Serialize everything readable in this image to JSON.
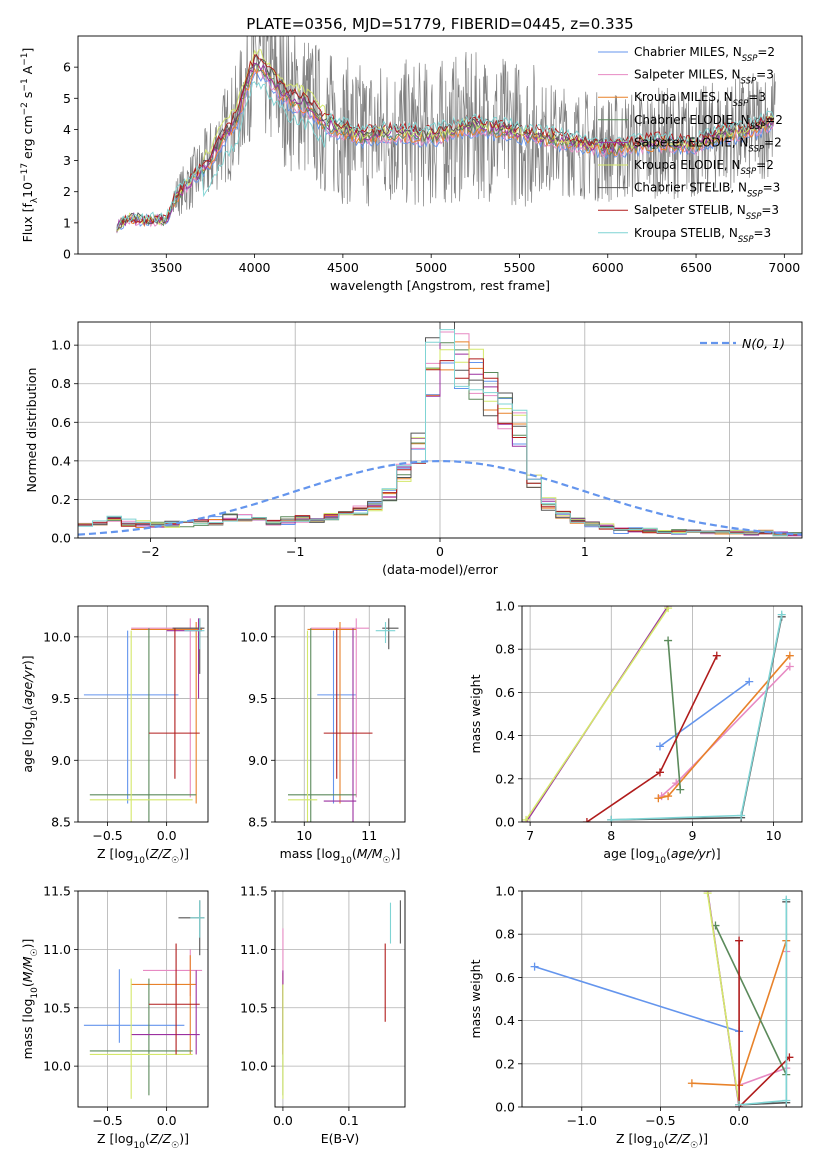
{
  "figure": {
    "title": "PLATE=0356, MJD=51779, FIBERID=0445, z=0.335"
  },
  "series_styles": [
    {
      "name": "Chabrier MILES, N_SSP=2",
      "label_main": "Chabrier MILES, N",
      "label_sub": "SSP",
      "label_end": "=2",
      "color": "#6495ed"
    },
    {
      "name": "Salpeter MILES, N_SSP=3",
      "label_main": "Salpeter MILES, N",
      "label_sub": "SSP",
      "label_end": "=3",
      "color": "#e78ac3"
    },
    {
      "name": "Kroupa MILES, N_SSP=3",
      "label_main": "Kroupa MILES, N",
      "label_sub": "SSP",
      "label_end": "=3",
      "color": "#e8822a"
    },
    {
      "name": "Chabrier ELODIE, N_SSP=2",
      "label_main": "Chabrier ELODIE, N",
      "label_sub": "SSP",
      "label_end": "=2",
      "color": "#5b8a5b"
    },
    {
      "name": "Salpeter ELODIE, N_SSP=2",
      "label_main": "Salpeter ELODIE, N",
      "label_sub": "SSP",
      "label_end": "=2",
      "color": "#9b30a0"
    },
    {
      "name": "Kroupa ELODIE, N_SSP=2",
      "label_main": "Kroupa ELODIE, N",
      "label_sub": "SSP",
      "label_end": "=2",
      "color": "#d4e86a"
    },
    {
      "name": "Chabrier STELIB, N_SSP=3",
      "label_main": "Chabrier STELIB, N",
      "label_sub": "SSP",
      "label_end": "=3",
      "color": "#555555"
    },
    {
      "name": "Salpeter STELIB, N_SSP=3",
      "label_main": "Salpeter STELIB, N",
      "label_sub": "SSP",
      "label_end": "=3",
      "color": "#b01c1c"
    },
    {
      "name": "Kroupa STELIB, N_SSP=3",
      "label_main": "Kroupa STELIB, N",
      "label_sub": "SSP",
      "label_end": "=3",
      "color": "#7fd4d4"
    }
  ],
  "chart_data": [
    {
      "id": "spectrum",
      "type": "line",
      "xlabel": "wavelength [Angstrom, rest frame]",
      "ylabel": "Flux [f_λ 10^-17 erg cm^-2 s^-1 A^-1]",
      "xlim": [
        3000,
        7100
      ],
      "ylim": [
        0,
        7
      ],
      "xticks": [
        3500,
        4000,
        4500,
        5000,
        5500,
        6000,
        6500,
        7000
      ],
      "yticks": [
        0,
        1,
        2,
        3,
        4,
        5,
        6
      ],
      "data_color": "#808080",
      "model_anchors": {
        "x": [
          3220,
          3300,
          3400,
          3500,
          3550,
          3650,
          3750,
          3800,
          3900,
          3950,
          4000,
          4050,
          4100,
          4200,
          4300,
          4400,
          4500,
          4600,
          4800,
          5000,
          5200,
          5300,
          5500,
          5700,
          6000,
          6300,
          6500,
          6600,
          6800,
          6950
        ],
        "y": [
          0.9,
          1.15,
          1.1,
          1.1,
          1.8,
          2.4,
          3.0,
          3.6,
          4.3,
          5.4,
          6.1,
          6.0,
          5.6,
          5.0,
          4.8,
          4.2,
          4.0,
          3.8,
          3.9,
          3.8,
          4.1,
          4.1,
          3.9,
          3.7,
          3.4,
          3.6,
          3.5,
          3.8,
          4.0,
          4.3
        ]
      },
      "legend": "upper right",
      "grid": false
    },
    {
      "id": "residuals",
      "type": "line",
      "xlabel": "(data-model)/error",
      "ylabel": "Normed distribution",
      "xlim": [
        -2.5,
        2.5
      ],
      "ylim": [
        0,
        1.12
      ],
      "xticks": [
        -2,
        -1,
        0,
        1,
        2
      ],
      "yticks": [
        0.0,
        0.2,
        0.4,
        0.6,
        0.8,
        1.0
      ],
      "gaussian_label": "N(0, 1)",
      "gaussian_color": "#6495ed",
      "hist_edges": [
        -2.5,
        -2.4,
        -2.3,
        -2.2,
        -2.1,
        -2.0,
        -1.9,
        -1.8,
        -1.7,
        -1.6,
        -1.5,
        -1.4,
        -1.3,
        -1.2,
        -1.1,
        -1.0,
        -0.9,
        -0.8,
        -0.7,
        -0.6,
        -0.5,
        -0.4,
        -0.3,
        -0.2,
        -0.1,
        0.0,
        0.1,
        0.2,
        0.3,
        0.4,
        0.5,
        0.6,
        0.7,
        0.8,
        0.9,
        1.0,
        1.1,
        1.2,
        1.3,
        1.4,
        1.5,
        1.6,
        1.7,
        1.8,
        1.9,
        2.0,
        2.1,
        2.2,
        2.3,
        2.4,
        2.5
      ],
      "hist_base": [
        0.08,
        0.08,
        0.09,
        0.08,
        0.07,
        0.07,
        0.07,
        0.08,
        0.08,
        0.09,
        0.1,
        0.1,
        0.1,
        0.08,
        0.09,
        0.1,
        0.1,
        0.11,
        0.12,
        0.14,
        0.16,
        0.22,
        0.33,
        0.46,
        0.88,
        1.02,
        0.93,
        0.83,
        0.77,
        0.68,
        0.57,
        0.3,
        0.18,
        0.12,
        0.09,
        0.07,
        0.06,
        0.04,
        0.04,
        0.04,
        0.03,
        0.03,
        0.03,
        0.03,
        0.03,
        0.03,
        0.03,
        0.03,
        0.02,
        0.02
      ],
      "legend": "upper right",
      "grid": true
    },
    {
      "id": "age-vs-Z",
      "type": "scatter",
      "xlabel": "Z [log10(Z/Z☉)]",
      "ylabel": "age [log10(age/yr)]",
      "xlim": [
        -0.75,
        0.35
      ],
      "ylim": [
        8.5,
        10.25
      ],
      "xticks": [
        -0.5,
        0.0
      ],
      "yticks": [
        8.5,
        9.0,
        9.5,
        10.0
      ],
      "points": [
        {
          "s": 0,
          "x": -0.33,
          "y": 9.53,
          "xlo": -0.7,
          "xhi": 0.1,
          "ylo": 8.65,
          "yhi": 10.05
        },
        {
          "s": 1,
          "x": 0.2,
          "y": 10.07,
          "xlo": -0.3,
          "xhi": 0.3,
          "ylo": 8.7,
          "yhi": 10.15
        },
        {
          "s": 2,
          "x": 0.25,
          "y": 10.06,
          "xlo": -0.3,
          "xhi": 0.3,
          "ylo": 8.65,
          "yhi": 10.12
        },
        {
          "s": 3,
          "x": -0.15,
          "y": 8.72,
          "xlo": -0.65,
          "xhi": 0.25,
          "ylo": 8.5,
          "yhi": 10.07
        },
        {
          "s": 4,
          "x": 0.27,
          "y": 10.05,
          "xlo": 0.0,
          "xhi": 0.3,
          "ylo": 9.5,
          "yhi": 10.15
        },
        {
          "s": 5,
          "x": -0.3,
          "y": 8.68,
          "xlo": -0.65,
          "xhi": 0.22,
          "ylo": 8.5,
          "yhi": 10.05
        },
        {
          "s": 6,
          "x": 0.28,
          "y": 10.07,
          "xlo": 0.05,
          "xhi": 0.32,
          "ylo": 9.7,
          "yhi": 10.15
        },
        {
          "s": 7,
          "x": 0.07,
          "y": 9.22,
          "xlo": -0.15,
          "xhi": 0.28,
          "ylo": 8.85,
          "yhi": 10.07
        },
        {
          "s": 8,
          "x": 0.28,
          "y": 10.05,
          "xlo": 0.15,
          "xhi": 0.32,
          "ylo": 9.9,
          "yhi": 10.15
        }
      ],
      "grid": true
    },
    {
      "id": "age-vs-mass",
      "type": "scatter",
      "xlabel": "mass [log10(M/M☉)]",
      "ylabel": "",
      "xlim": [
        9.55,
        11.55
      ],
      "ylim": [
        8.5,
        10.25
      ],
      "xticks": [
        10,
        11
      ],
      "yticks": [
        8.5,
        9.0,
        9.5,
        10.0
      ],
      "points": [
        {
          "s": 0,
          "x": 10.45,
          "y": 9.53,
          "xlo": 10.2,
          "xhi": 10.8,
          "ylo": 8.65,
          "yhi": 10.05
        },
        {
          "s": 1,
          "x": 10.8,
          "y": 10.07,
          "xlo": 10.1,
          "xhi": 11.0,
          "ylo": 8.7,
          "yhi": 10.15
        },
        {
          "s": 2,
          "x": 10.55,
          "y": 10.06,
          "xlo": 10.05,
          "xhi": 10.8,
          "ylo": 8.65,
          "yhi": 10.12
        },
        {
          "s": 3,
          "x": 10.1,
          "y": 8.72,
          "xlo": 9.75,
          "xhi": 10.8,
          "ylo": 8.5,
          "yhi": 10.07
        },
        {
          "s": 4,
          "x": 10.75,
          "y": 8.67,
          "xlo": 10.3,
          "xhi": 10.8,
          "ylo": 8.5,
          "yhi": 10.07
        },
        {
          "s": 5,
          "x": 10.05,
          "y": 8.68,
          "xlo": 9.75,
          "xhi": 10.2,
          "ylo": 8.5,
          "yhi": 10.05
        },
        {
          "s": 6,
          "x": 11.3,
          "y": 10.07,
          "xlo": 11.2,
          "xhi": 11.45,
          "ylo": 9.9,
          "yhi": 10.15
        },
        {
          "s": 7,
          "x": 10.5,
          "y": 9.22,
          "xlo": 10.3,
          "xhi": 11.05,
          "ylo": 8.85,
          "yhi": 10.07
        },
        {
          "s": 8,
          "x": 11.25,
          "y": 10.05,
          "xlo": 11.1,
          "xhi": 11.4,
          "ylo": 9.95,
          "yhi": 10.12
        }
      ],
      "grid": true
    },
    {
      "id": "weight-vs-age",
      "type": "line",
      "xlabel": "age [log10(age/yr)]",
      "ylabel": "mass weight",
      "xlim": [
        6.9,
        10.35
      ],
      "ylim": [
        0,
        1
      ],
      "xticks": [
        7,
        8,
        9,
        10
      ],
      "yticks": [
        0.0,
        0.2,
        0.4,
        0.6,
        0.8,
        1.0
      ],
      "lines": [
        {
          "s": 0,
          "x": [
            8.6,
            9.7
          ],
          "y": [
            0.35,
            0.65
          ]
        },
        {
          "s": 1,
          "x": [
            8.62,
            8.8,
            10.2
          ],
          "y": [
            0.12,
            0.18,
            0.72
          ]
        },
        {
          "s": 2,
          "x": [
            8.58,
            8.7,
            10.2
          ],
          "y": [
            0.11,
            0.12,
            0.77
          ]
        },
        {
          "s": 3,
          "x": [
            8.7,
            8.85
          ],
          "y": [
            0.84,
            0.15
          ]
        },
        {
          "s": 4,
          "x": [
            6.95,
            8.7
          ],
          "y": [
            0.0,
            1.0
          ]
        },
        {
          "s": 5,
          "x": [
            6.95,
            8.7
          ],
          "y": [
            0.01,
            0.99
          ]
        },
        {
          "s": 6,
          "x": [
            8.0,
            9.6,
            10.1
          ],
          "y": [
            0.01,
            0.02,
            0.95
          ]
        },
        {
          "s": 7,
          "x": [
            7.7,
            8.6,
            9.3
          ],
          "y": [
            0.0,
            0.23,
            0.77
          ]
        },
        {
          "s": 8,
          "x": [
            8.0,
            9.6,
            10.1
          ],
          "y": [
            0.01,
            0.03,
            0.96
          ]
        }
      ],
      "grid": true
    },
    {
      "id": "mass-vs-Z",
      "type": "scatter",
      "xlabel": "Z [log10(Z/Z☉)]",
      "ylabel": "mass [log10(M/M☉)]",
      "xlim": [
        -0.75,
        0.35
      ],
      "ylim": [
        9.65,
        11.5
      ],
      "xticks": [
        -0.5,
        0.0
      ],
      "yticks": [
        10.0,
        10.5,
        11.0,
        11.5
      ],
      "points": [
        {
          "s": 0,
          "x": -0.4,
          "y": 10.35,
          "xlo": -0.7,
          "xhi": 0.15,
          "ylo": 10.2,
          "yhi": 10.83
        },
        {
          "s": 1,
          "x": 0.2,
          "y": 10.82,
          "xlo": -0.2,
          "xhi": 0.3,
          "ylo": 10.6,
          "yhi": 11.0
        },
        {
          "s": 2,
          "x": 0.2,
          "y": 10.7,
          "xlo": -0.3,
          "xhi": 0.25,
          "ylo": 10.1,
          "yhi": 10.95
        },
        {
          "s": 3,
          "x": -0.15,
          "y": 10.13,
          "xlo": -0.65,
          "xhi": 0.22,
          "ylo": 9.75,
          "yhi": 10.75
        },
        {
          "s": 4,
          "x": 0.25,
          "y": 10.27,
          "xlo": -0.3,
          "xhi": 0.28,
          "ylo": 10.1,
          "yhi": 10.82
        },
        {
          "s": 5,
          "x": -0.3,
          "y": 10.1,
          "xlo": -0.65,
          "xhi": 0.22,
          "ylo": 9.72,
          "yhi": 10.75
        },
        {
          "s": 6,
          "x": 0.28,
          "y": 11.27,
          "xlo": 0.1,
          "xhi": 0.32,
          "ylo": 10.95,
          "yhi": 11.42
        },
        {
          "s": 7,
          "x": 0.08,
          "y": 10.53,
          "xlo": -0.15,
          "xhi": 0.28,
          "ylo": 10.1,
          "yhi": 11.05
        },
        {
          "s": 8,
          "x": 0.28,
          "y": 11.27,
          "xlo": 0.2,
          "xhi": 0.32,
          "ylo": 11.1,
          "yhi": 11.42
        }
      ],
      "grid": true
    },
    {
      "id": "mass-vs-ebv",
      "type": "scatter",
      "xlabel": "E(B-V)",
      "ylabel": "",
      "xlim": [
        -0.012,
        0.185
      ],
      "ylim": [
        9.65,
        11.5
      ],
      "xticks": [
        0.0,
        0.1
      ],
      "yticks": [
        10.0,
        10.5,
        11.0,
        11.5
      ],
      "points": [
        {
          "s": 0,
          "x": 0.0,
          "y": 10.45,
          "ylo": 10.2,
          "yhi": 10.7
        },
        {
          "s": 1,
          "x": 0.0,
          "y": 10.9,
          "ylo": 10.6,
          "yhi": 11.18
        },
        {
          "s": 2,
          "x": 0.0,
          "y": 10.6,
          "ylo": 10.1,
          "yhi": 10.8
        },
        {
          "s": 3,
          "x": 0.0,
          "y": 10.2,
          "ylo": 9.75,
          "yhi": 10.7
        },
        {
          "s": 4,
          "x": 0.0,
          "y": 10.6,
          "ylo": 10.1,
          "yhi": 10.82
        },
        {
          "s": 5,
          "x": 0.0,
          "y": 10.1,
          "ylo": 9.72,
          "yhi": 10.7
        },
        {
          "s": 6,
          "x": 0.178,
          "y": 11.22,
          "ylo": 11.05,
          "yhi": 11.42
        },
        {
          "s": 7,
          "x": 0.155,
          "y": 10.7,
          "ylo": 10.38,
          "yhi": 11.05
        },
        {
          "s": 8,
          "x": 0.163,
          "y": 11.22,
          "ylo": 11.05,
          "yhi": 11.4
        }
      ],
      "grid": true
    },
    {
      "id": "weight-vs-Z",
      "type": "line",
      "xlabel": "Z [log10(Z/Z☉)]",
      "ylabel": "mass weight",
      "xlim": [
        -1.38,
        0.4
      ],
      "ylim": [
        0,
        1
      ],
      "xticks": [
        -1.0,
        -0.5,
        0.0
      ],
      "yticks": [
        0.0,
        0.2,
        0.4,
        0.6,
        0.8,
        1.0
      ],
      "lines": [
        {
          "s": 0,
          "x": [
            -1.3,
            0.0
          ],
          "y": [
            0.65,
            0.35
          ]
        },
        {
          "s": 1,
          "x": [
            0.0,
            0.3,
            0.3
          ],
          "y": [
            0.1,
            0.18,
            0.72
          ]
        },
        {
          "s": 2,
          "x": [
            -0.3,
            0.0,
            0.3
          ],
          "y": [
            0.11,
            0.1,
            0.77
          ]
        },
        {
          "s": 3,
          "x": [
            -0.15,
            0.3
          ],
          "y": [
            0.84,
            0.15
          ]
        },
        {
          "s": 4,
          "x": [
            -0.2,
            0.0
          ],
          "y": [
            1.0,
            0.0
          ]
        },
        {
          "s": 5,
          "x": [
            -0.2,
            0.0
          ],
          "y": [
            0.99,
            0.01
          ]
        },
        {
          "s": 6,
          "x": [
            0.3,
            0.3,
            0.0
          ],
          "y": [
            0.95,
            0.02,
            0.01
          ]
        },
        {
          "s": 7,
          "x": [
            0.0,
            0.0,
            0.32
          ],
          "y": [
            0.77,
            0.0,
            0.23
          ]
        },
        {
          "s": 8,
          "x": [
            0.0,
            0.3,
            0.3
          ],
          "y": [
            0.01,
            0.03,
            0.96
          ]
        }
      ],
      "grid": true
    }
  ]
}
